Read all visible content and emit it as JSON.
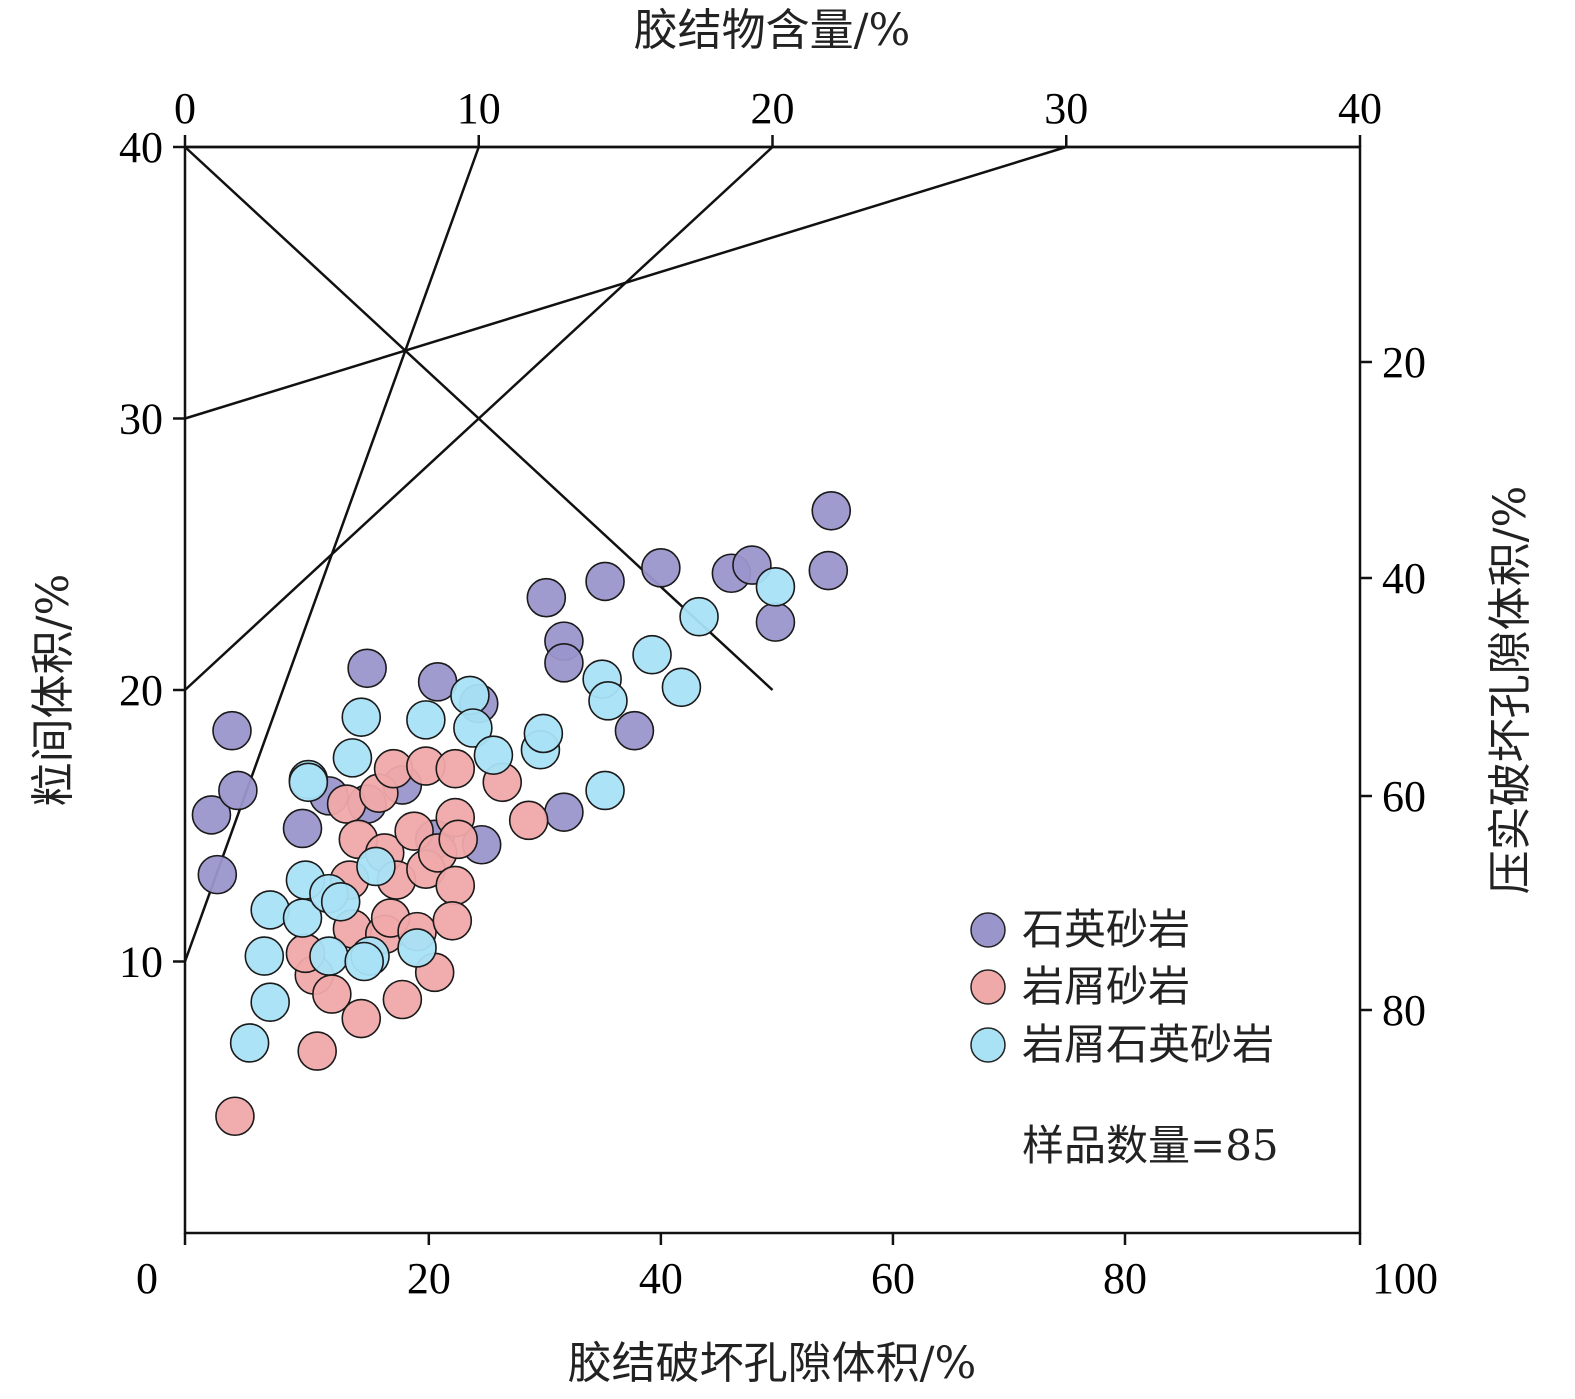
{
  "chart_data": {
    "type": "scatter",
    "axes": {
      "bottom": {
        "label": "胶结破坏孔隙体积/%",
        "range": [
          0,
          100
        ],
        "ticks": [
          0,
          20,
          40,
          60,
          80,
          100
        ]
      },
      "left": {
        "label": "粒间体积/%",
        "range": [
          0,
          40
        ],
        "ticks": [
          10,
          20,
          30,
          40
        ]
      },
      "top": {
        "label": "胶结物含量/%",
        "range": [
          0,
          40
        ],
        "ticks": [
          0,
          10,
          20,
          30,
          40
        ]
      },
      "right": {
        "label": "压实破坏孔隙体积/%",
        "range": [
          0,
          100
        ],
        "reversed": true,
        "ticks": [
          20,
          40,
          60,
          80
        ]
      }
    },
    "reference_lines": {
      "cement_isolines": [
        0,
        10,
        20,
        30
      ],
      "equal_destruction_diagonal": true
    },
    "legend_position": "lower-right",
    "sample_count_label": "样品数量=85",
    "series": [
      {
        "name": "石英砂岩",
        "color": "#9a96cc",
        "points": [
          {
            "cement": 0.9,
            "igv": 15.4
          },
          {
            "cement": 1.1,
            "igv": 13.2
          },
          {
            "cement": 1.6,
            "igv": 18.5
          },
          {
            "cement": 1.8,
            "igv": 16.3
          },
          {
            "cement": 4.0,
            "igv": 14.9
          },
          {
            "cement": 4.9,
            "igv": 16.1
          },
          {
            "cement": 6.2,
            "igv": 20.8
          },
          {
            "cement": 6.2,
            "igv": 15.8
          },
          {
            "cement": 7.4,
            "igv": 16.5
          },
          {
            "cement": 8.5,
            "igv": 14.5
          },
          {
            "cement": 8.6,
            "igv": 20.3
          },
          {
            "cement": 10.0,
            "igv": 19.5
          },
          {
            "cement": 10.1,
            "igv": 14.3
          },
          {
            "cement": 12.3,
            "igv": 23.4
          },
          {
            "cement": 12.9,
            "igv": 21.8
          },
          {
            "cement": 12.9,
            "igv": 21.0
          },
          {
            "cement": 12.9,
            "igv": 15.5
          },
          {
            "cement": 14.3,
            "igv": 24.0
          },
          {
            "cement": 15.3,
            "igv": 18.5
          },
          {
            "cement": 16.2,
            "igv": 24.5
          },
          {
            "cement": 18.6,
            "igv": 24.3
          },
          {
            "cement": 19.3,
            "igv": 24.6
          },
          {
            "cement": 20.1,
            "igv": 22.5
          },
          {
            "cement": 21.9,
            "igv": 24.4
          },
          {
            "cement": 22.0,
            "igv": 26.6
          }
        ]
      },
      {
        "name": "岩屑砂岩",
        "color": "#f0a9a9",
        "points": [
          {
            "cement": 1.7,
            "igv": 4.3
          },
          {
            "cement": 4.5,
            "igv": 6.7
          },
          {
            "cement": 4.4,
            "igv": 9.5
          },
          {
            "cement": 4.1,
            "igv": 10.3
          },
          {
            "cement": 5.0,
            "igv": 8.8
          },
          {
            "cement": 5.5,
            "igv": 15.8
          },
          {
            "cement": 5.9,
            "igv": 14.5
          },
          {
            "cement": 5.6,
            "igv": 13.0
          },
          {
            "cement": 5.7,
            "igv": 11.2
          },
          {
            "cement": 6.0,
            "igv": 7.9
          },
          {
            "cement": 6.6,
            "igv": 16.2
          },
          {
            "cement": 6.8,
            "igv": 14.0
          },
          {
            "cement": 6.8,
            "igv": 11.0
          },
          {
            "cement": 7.1,
            "igv": 17.1
          },
          {
            "cement": 7.2,
            "igv": 13.0
          },
          {
            "cement": 7.0,
            "igv": 11.6
          },
          {
            "cement": 7.4,
            "igv": 8.6
          },
          {
            "cement": 7.8,
            "igv": 14.8
          },
          {
            "cement": 7.9,
            "igv": 11.1
          },
          {
            "cement": 8.2,
            "igv": 17.2
          },
          {
            "cement": 8.2,
            "igv": 13.4
          },
          {
            "cement": 8.6,
            "igv": 14.0
          },
          {
            "cement": 8.5,
            "igv": 9.6
          },
          {
            "cement": 9.2,
            "igv": 17.1
          },
          {
            "cement": 9.2,
            "igv": 15.3
          },
          {
            "cement": 9.3,
            "igv": 14.5
          },
          {
            "cement": 9.2,
            "igv": 12.8
          },
          {
            "cement": 9.1,
            "igv": 11.5
          },
          {
            "cement": 10.8,
            "igv": 16.6
          },
          {
            "cement": 11.7,
            "igv": 15.2
          }
        ]
      },
      {
        "name": "岩屑石英砂岩",
        "color": "#a9e2f5",
        "points": [
          {
            "cement": 2.2,
            "igv": 7.0
          },
          {
            "cement": 2.7,
            "igv": 10.2
          },
          {
            "cement": 2.9,
            "igv": 8.5
          },
          {
            "cement": 2.9,
            "igv": 11.9
          },
          {
            "cement": 4.0,
            "igv": 11.6
          },
          {
            "cement": 4.1,
            "igv": 13.0
          },
          {
            "cement": 4.2,
            "igv": 16.7
          },
          {
            "cement": 4.9,
            "igv": 12.5
          },
          {
            "cement": 4.9,
            "igv": 10.2
          },
          {
            "cement": 5.3,
            "igv": 12.2
          },
          {
            "cement": 5.7,
            "igv": 17.5
          },
          {
            "cement": 6.0,
            "igv": 19.0
          },
          {
            "cement": 6.3,
            "igv": 10.2
          },
          {
            "cement": 6.5,
            "igv": 13.5
          },
          {
            "cement": 6.1,
            "igv": 10.0
          },
          {
            "cement": 7.9,
            "igv": 10.5
          },
          {
            "cement": 8.2,
            "igv": 18.9
          },
          {
            "cement": 9.7,
            "igv": 19.8
          },
          {
            "cement": 9.8,
            "igv": 18.6
          },
          {
            "cement": 10.5,
            "igv": 17.6
          },
          {
            "cement": 12.1,
            "igv": 17.8
          },
          {
            "cement": 12.2,
            "igv": 18.4
          },
          {
            "cement": 14.2,
            "igv": 20.4
          },
          {
            "cement": 14.3,
            "igv": 16.3
          },
          {
            "cement": 14.4,
            "igv": 19.6
          },
          {
            "cement": 15.9,
            "igv": 21.3
          },
          {
            "cement": 16.9,
            "igv": 20.1
          },
          {
            "cement": 17.5,
            "igv": 22.7
          },
          {
            "cement": 20.1,
            "igv": 23.8
          },
          {
            "cement": 4.2,
            "igv": 16.6
          }
        ]
      }
    ]
  }
}
